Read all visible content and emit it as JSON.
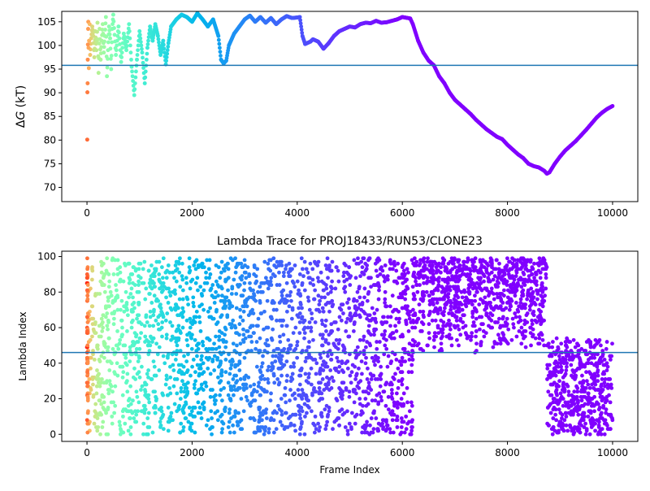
{
  "chart_data": [
    {
      "type": "scatter",
      "title": "",
      "xlabel": "",
      "ylabel": "ΔG (kT)",
      "ylabel_prefix": "Δ",
      "ylabel_symbol": "G",
      "ylabel_unit": " (kT)",
      "xlim": [
        -480,
        10480
      ],
      "ylim": [
        67.0,
        107.2
      ],
      "xticks": [
        0,
        2000,
        4000,
        6000,
        8000,
        10000
      ],
      "xtick_labels": [
        "0",
        "2000",
        "4000",
        "6000",
        "8000",
        "10000"
      ],
      "yticks": [
        70,
        75,
        80,
        85,
        90,
        95,
        100,
        105
      ],
      "ytick_labels": [
        "70",
        "75",
        "80",
        "85",
        "90",
        "95",
        "100",
        "105"
      ],
      "hline": 95.8,
      "hline_color": "#1f77b4",
      "colormap": "rainbow (color by frame index: early frames red, late frames violet)",
      "grid": false,
      "series": [
        {
          "points": [
            [
              5,
              80.1
            ],
            [
              8,
              90.1
            ],
            [
              12,
              92.0
            ],
            [
              15,
              97.0
            ],
            [
              18,
              100.2
            ],
            [
              22,
              103.5
            ],
            [
              25,
              105.0
            ],
            [
              30,
              99.5
            ],
            [
              35,
              95.2
            ],
            [
              40,
              101.0
            ],
            [
              50,
              104.5
            ],
            [
              60,
              98.0
            ],
            [
              80,
              101.5
            ],
            [
              100,
              104.0
            ],
            [
              120,
              102.0
            ],
            [
              140,
              97.5
            ],
            [
              160,
              103.0
            ],
            [
              180,
              99.0
            ],
            [
              200,
              104.8
            ],
            [
              220,
              94.2
            ],
            [
              240,
              103.5
            ],
            [
              260,
              97.0
            ],
            [
              280,
              101.0
            ],
            [
              300,
              104.5
            ],
            [
              320,
              98.5
            ],
            [
              340,
              102.0
            ],
            [
              360,
              106.0
            ],
            [
              380,
              93.5
            ],
            [
              400,
              99.0
            ],
            [
              420,
              104.0
            ],
            [
              440,
              101.5
            ],
            [
              460,
              95.0
            ],
            [
              480,
              103.5
            ],
            [
              500,
              106.5
            ],
            [
              550,
              98.0
            ],
            [
              600,
              104.0
            ],
            [
              650,
              96.5
            ],
            [
              700,
              102.5
            ],
            [
              750,
              99.0
            ],
            [
              800,
              104.5
            ],
            [
              850,
              95.5
            ],
            [
              900,
              89.5
            ],
            [
              950,
              97.0
            ],
            [
              1000,
              103.0
            ],
            [
              1050,
              98.5
            ],
            [
              1100,
              92.0
            ],
            [
              1150,
              99.5
            ],
            [
              1200,
              104.0
            ],
            [
              1250,
              101.0
            ],
            [
              1300,
              104.5
            ],
            [
              1350,
              102.0
            ],
            [
              1400,
              98.0
            ],
            [
              1450,
              101.0
            ],
            [
              1500,
              96.0
            ],
            [
              1550,
              100.5
            ],
            [
              1600,
              104.0
            ],
            [
              1700,
              105.5
            ],
            [
              1800,
              106.5
            ],
            [
              1900,
              106.0
            ],
            [
              2000,
              105.0
            ],
            [
              2100,
              106.8
            ],
            [
              2200,
              105.5
            ],
            [
              2300,
              104.0
            ],
            [
              2400,
              105.5
            ],
            [
              2500,
              102.0
            ],
            [
              2550,
              97.0
            ],
            [
              2600,
              96.2
            ],
            [
              2650,
              96.8
            ],
            [
              2700,
              100.0
            ],
            [
              2800,
              102.5
            ],
            [
              2900,
              104.0
            ],
            [
              3000,
              105.5
            ],
            [
              3100,
              106.3
            ],
            [
              3200,
              105.0
            ],
            [
              3300,
              106.0
            ],
            [
              3400,
              104.8
            ],
            [
              3500,
              105.8
            ],
            [
              3600,
              104.5
            ],
            [
              3700,
              105.5
            ],
            [
              3800,
              106.2
            ],
            [
              3900,
              105.8
            ],
            [
              4000,
              105.9
            ],
            [
              4050,
              106.0
            ],
            [
              4100,
              102.0
            ],
            [
              4150,
              100.3
            ],
            [
              4250,
              100.8
            ],
            [
              4300,
              101.3
            ],
            [
              4400,
              100.8
            ],
            [
              4500,
              99.3
            ],
            [
              4600,
              100.5
            ],
            [
              4700,
              102.0
            ],
            [
              4800,
              103.0
            ],
            [
              4900,
              103.5
            ],
            [
              5000,
              104.0
            ],
            [
              5100,
              103.8
            ],
            [
              5200,
              104.5
            ],
            [
              5300,
              104.8
            ],
            [
              5400,
              104.7
            ],
            [
              5500,
              105.2
            ],
            [
              5600,
              104.8
            ],
            [
              5700,
              104.9
            ],
            [
              5800,
              105.2
            ],
            [
              5900,
              105.5
            ],
            [
              6000,
              106.0
            ],
            [
              6100,
              105.8
            ],
            [
              6150,
              105.7
            ],
            [
              6200,
              104.5
            ],
            [
              6300,
              101.0
            ],
            [
              6400,
              98.5
            ],
            [
              6500,
              96.8
            ],
            [
              6600,
              95.8
            ],
            [
              6700,
              93.5
            ],
            [
              6800,
              92.0
            ],
            [
              6900,
              90.0
            ],
            [
              7000,
              88.5
            ],
            [
              7100,
              87.5
            ],
            [
              7200,
              86.5
            ],
            [
              7300,
              85.5
            ],
            [
              7400,
              84.3
            ],
            [
              7500,
              83.3
            ],
            [
              7600,
              82.3
            ],
            [
              7700,
              81.5
            ],
            [
              7800,
              80.7
            ],
            [
              7900,
              80.2
            ],
            [
              8000,
              79.0
            ],
            [
              8100,
              78.0
            ],
            [
              8200,
              77.0
            ],
            [
              8300,
              76.2
            ],
            [
              8400,
              75.0
            ],
            [
              8500,
              74.5
            ],
            [
              8600,
              74.2
            ],
            [
              8700,
              73.5
            ],
            [
              8750,
              72.9
            ],
            [
              8800,
              73.2
            ],
            [
              8900,
              75.0
            ],
            [
              9000,
              76.5
            ],
            [
              9100,
              77.8
            ],
            [
              9200,
              78.8
            ],
            [
              9300,
              79.8
            ],
            [
              9400,
              81.0
            ],
            [
              9500,
              82.2
            ],
            [
              9600,
              83.5
            ],
            [
              9700,
              84.8
            ],
            [
              9800,
              85.8
            ],
            [
              9900,
              86.6
            ],
            [
              10000,
              87.2
            ]
          ]
        }
      ]
    },
    {
      "type": "scatter",
      "title": "Lambda Trace for PROJ18433/RUN53/CLONE23",
      "xlabel": "Frame Index",
      "ylabel": "Lambda Index",
      "xlim": [
        -480,
        10480
      ],
      "ylim": [
        -4,
        103
      ],
      "xticks": [
        0,
        2000,
        4000,
        6000,
        8000,
        10000
      ],
      "xtick_labels": [
        "0",
        "2000",
        "4000",
        "6000",
        "8000",
        "10000"
      ],
      "yticks": [
        0,
        20,
        40,
        60,
        80,
        100
      ],
      "ytick_labels": [
        "0",
        "20",
        "40",
        "60",
        "80",
        "100"
      ],
      "hline": 46,
      "hline_color": "#1f77b4",
      "colormap": "rainbow (color by frame index: early frames red, late frames violet)",
      "grid": false,
      "series": [
        {
          "description_ranges": [
            {
              "x_range": [
                0,
                6200
              ],
              "lambda_range": [
                0,
                99
              ]
            },
            {
              "x_range": [
                6200,
                8750
              ],
              "lambda_range": [
                45,
                99
              ]
            },
            {
              "x_range": [
                8750,
                10000
              ],
              "lambda_range": [
                0,
                54
              ]
            }
          ]
        }
      ]
    }
  ]
}
